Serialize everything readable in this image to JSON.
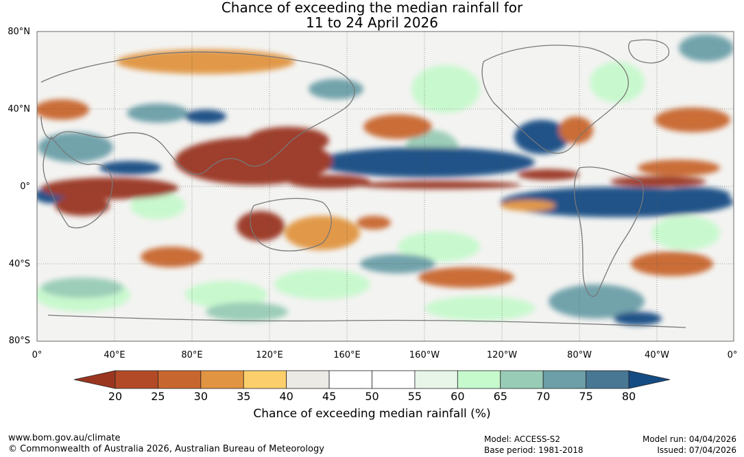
{
  "title_line1": "Chance of exceeding the median rainfall for",
  "title_line2": "11 to 24 April 2026",
  "lat_labels": [
    "80°N",
    "40°N",
    "0°",
    "40°S",
    "80°S"
  ],
  "lon_labels": [
    "0°",
    "40°E",
    "80°E",
    "120°E",
    "160°E",
    "160°W",
    "120°W",
    "80°W",
    "40°W",
    "0°"
  ],
  "colorbar": {
    "ticks": [
      "20",
      "25",
      "30",
      "35",
      "40",
      "45",
      "50",
      "55",
      "60",
      "65",
      "70",
      "75",
      "80"
    ],
    "colors": [
      "#9a3620",
      "#b24a28",
      "#c8662f",
      "#e19441",
      "#fccf6c",
      "#ebeae4",
      "#ffffff",
      "#ffffff",
      "#e8f6ea",
      "#c6f9cc",
      "#98ccb6",
      "#6c9fa8",
      "#487793",
      "#154b83"
    ],
    "label": "Chance of exceeding median rainfall (%)"
  },
  "footer": {
    "website": "www.bom.gov.au/climate",
    "copyright": "© Commonwealth of Australia 2026, Australian Bureau of Meteorology",
    "model": "Model: ACCESS-S2",
    "base_period": "Base period: 1981-2018",
    "model_run": "Model run: 04/04/2026",
    "issued": "Issued: 07/04/2026"
  }
}
